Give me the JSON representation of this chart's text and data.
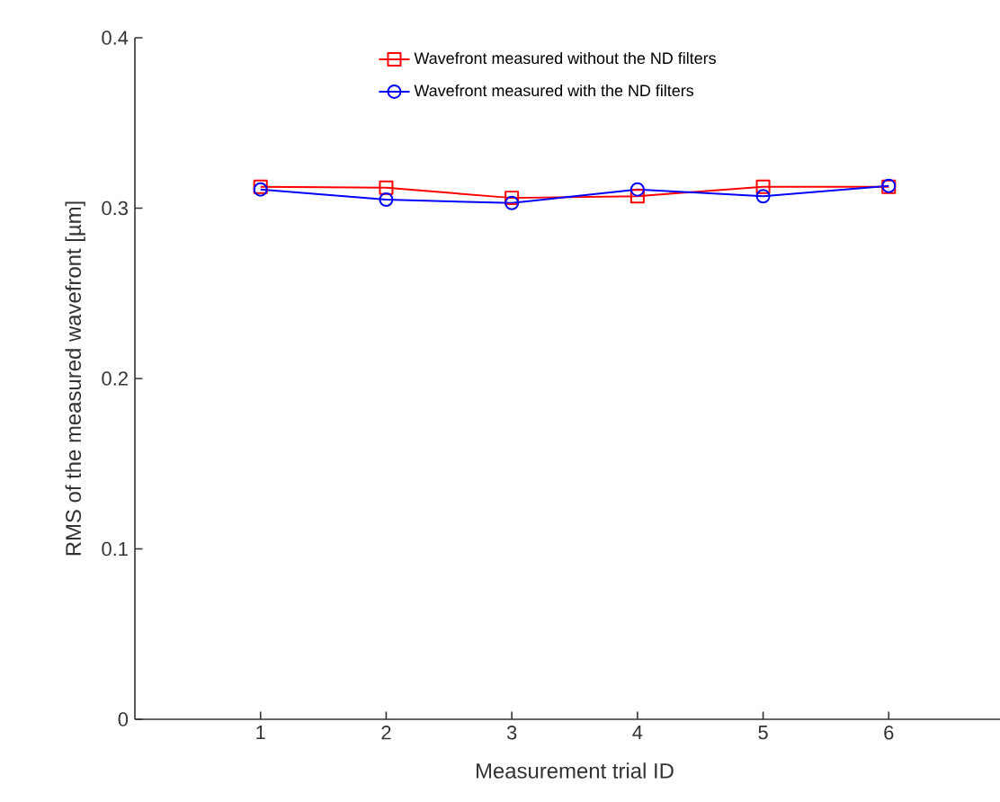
{
  "chart_data": {
    "type": "line",
    "xlabel": "Measurement trial ID",
    "ylabel": "RMS of the measured wavefront  [µm]",
    "x": [
      1,
      2,
      3,
      4,
      5,
      6
    ],
    "series": [
      {
        "name": "Wavefront measured without the ND filters",
        "color": "#ff0000",
        "marker": "square",
        "values": [
          0.3125,
          0.312,
          0.306,
          0.307,
          0.3125,
          0.3125
        ]
      },
      {
        "name": "Wavefront measured with the ND filters",
        "color": "#0000ff",
        "marker": "circle",
        "values": [
          0.311,
          0.305,
          0.303,
          0.311,
          0.307,
          0.313
        ]
      }
    ],
    "xlim": [
      0,
      7
    ],
    "ylim": [
      0,
      0.4
    ],
    "xticks": [
      1,
      2,
      3,
      4,
      5,
      6
    ],
    "yticks": [
      0,
      0.1,
      0.2,
      0.3,
      0.4
    ],
    "grid": false,
    "legend": "top",
    "line_style": "solid"
  }
}
